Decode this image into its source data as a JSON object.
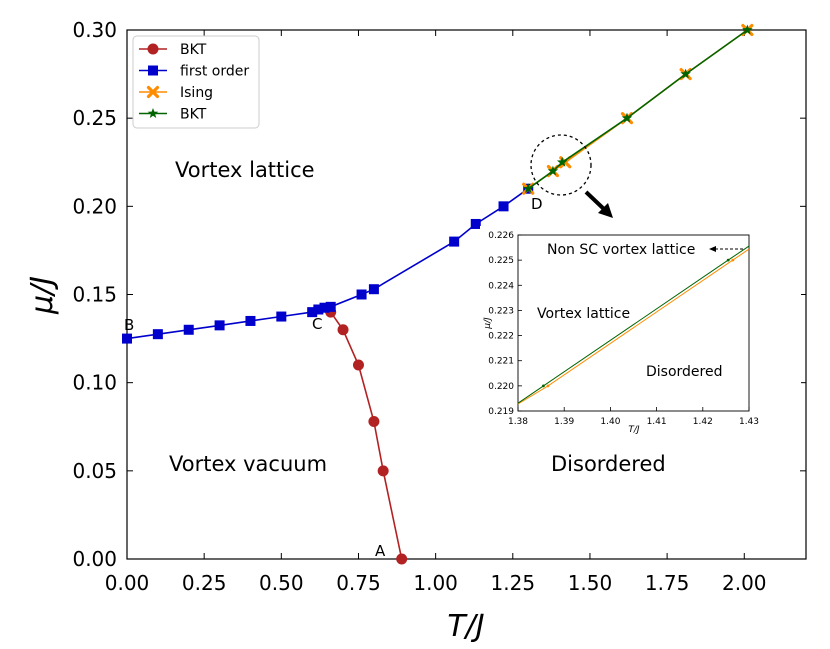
{
  "chart_data": {
    "type": "line",
    "xlabel": "T/J",
    "ylabel": "μ/J",
    "xlim": [
      0,
      2.2
    ],
    "ylim": [
      0,
      0.3
    ],
    "x_ticks": [
      "0.00",
      "0.25",
      "0.50",
      "0.75",
      "1.00",
      "1.25",
      "1.50",
      "1.75",
      "2.00"
    ],
    "y_ticks": [
      "0.00",
      "0.05",
      "0.10",
      "0.15",
      "0.20",
      "0.25",
      "0.30"
    ],
    "legend": {
      "position": "top-left",
      "entries": [
        "BKT",
        "first order",
        "Ising",
        "BKT"
      ]
    },
    "series": [
      {
        "name": "BKT",
        "color": "#b22222",
        "marker": "circle",
        "x": [
          0.66,
          0.7,
          0.75,
          0.8,
          0.83,
          0.89
        ],
        "y": [
          0.14,
          0.13,
          0.11,
          0.078,
          0.05,
          0.0
        ]
      },
      {
        "name": "first order",
        "color": "#0000cd",
        "marker": "square",
        "x": [
          0.0,
          0.1,
          0.2,
          0.3,
          0.4,
          0.5,
          0.6,
          0.62,
          0.64,
          0.66,
          0.76,
          0.8,
          1.06,
          1.13,
          1.22,
          1.3
        ],
        "y": [
          0.125,
          0.1275,
          0.13,
          0.1325,
          0.135,
          0.1375,
          0.14,
          0.1415,
          0.1425,
          0.143,
          0.15,
          0.153,
          0.18,
          0.19,
          0.2,
          0.21
        ]
      },
      {
        "name": "Ising",
        "color": "#ff8c00",
        "marker": "x",
        "x": [
          1.3,
          1.38,
          1.42,
          1.62,
          1.81,
          2.01
        ],
        "y": [
          0.21,
          0.22,
          0.225,
          0.25,
          0.275,
          0.3
        ]
      },
      {
        "name": "BKT",
        "color": "#006400",
        "marker": "star",
        "x": [
          1.3,
          1.38,
          1.41,
          1.62,
          1.81,
          2.01
        ],
        "y": [
          0.21,
          0.22,
          0.225,
          0.25,
          0.275,
          0.3
        ]
      }
    ],
    "region_labels": [
      "Vortex lattice",
      "Vortex vacuum",
      "Disordered"
    ],
    "point_labels": [
      "A",
      "B",
      "C",
      "D"
    ],
    "inset": {
      "xlabel": "T/J",
      "ylabel": "μ/J",
      "xlim": [
        1.38,
        1.43
      ],
      "ylim": [
        0.219,
        0.226
      ],
      "x_ticks": [
        "1.38",
        "1.39",
        "1.40",
        "1.41",
        "1.42",
        "1.43"
      ],
      "y_ticks": [
        "0.219",
        "0.220",
        "0.221",
        "0.222",
        "0.223",
        "0.224",
        "0.225",
        "0.226"
      ],
      "labels": [
        "Non SC vortex lattice",
        "Vortex lattice",
        "Disordered"
      ],
      "series": [
        {
          "name": "Ising",
          "color": "#ff8c00",
          "x": [
            1.38,
            1.3865,
            1.4265,
            1.43
          ],
          "y": [
            0.21928,
            0.22,
            0.225,
            0.22544
          ]
        },
        {
          "name": "BKT",
          "color": "#006400",
          "x": [
            1.38,
            1.3855,
            1.4255,
            1.43
          ],
          "y": [
            0.21931,
            0.22,
            0.225,
            0.22556
          ]
        }
      ]
    }
  }
}
